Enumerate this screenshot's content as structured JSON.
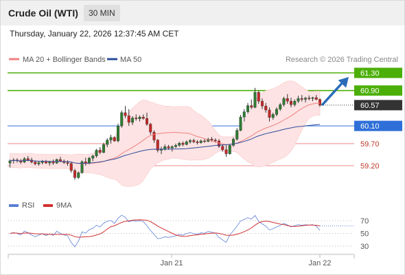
{
  "header": {
    "title": "Crude Oil (WTI)",
    "timeframe": "30 MIN"
  },
  "datetime": "Thursday, January 22, 2026 12:37:45 AM CET",
  "legend": {
    "ma20_label": "MA 20 + Bollinger Bands",
    "ma50_label": "MA 50",
    "ma20_color": "#f08080",
    "ma50_color": "#2c4c9c"
  },
  "credit": "Research © 2026 Trading Central",
  "colors": {
    "resistance": "#4caf08",
    "support_main": "#2f6fd8",
    "support_minor": "#c0392b",
    "last_price": "#333333",
    "bull": "#2e7d32",
    "bear": "#c62828",
    "arrow": "#2a6cb8"
  },
  "chart_data": {
    "type": "candlestick",
    "x_ticks": [
      "Jan 21",
      "Jan 22"
    ],
    "ylim": [
      59.05,
      61.38
    ],
    "levels": [
      {
        "value": 61.3,
        "label": "61.30",
        "type": "resistance"
      },
      {
        "value": 60.9,
        "label": "60.90",
        "type": "resistance"
      },
      {
        "value": 60.57,
        "label": "60.57",
        "type": "last"
      },
      {
        "value": 60.1,
        "label": "60.10",
        "type": "support_main"
      },
      {
        "value": 59.7,
        "label": "59.70",
        "type": "support_minor"
      },
      {
        "value": 59.2,
        "label": "59.20",
        "type": "support_minor"
      }
    ],
    "candles": [
      [
        59.26,
        59.34,
        59.16,
        59.31
      ],
      [
        59.31,
        59.37,
        59.25,
        59.33
      ],
      [
        59.33,
        59.37,
        59.27,
        59.31
      ],
      [
        59.31,
        59.35,
        59.24,
        59.28
      ],
      [
        59.28,
        59.39,
        59.26,
        59.36
      ],
      [
        59.36,
        59.42,
        59.3,
        59.33
      ],
      [
        59.33,
        59.38,
        59.25,
        59.28
      ],
      [
        59.28,
        59.32,
        59.21,
        59.24
      ],
      [
        59.24,
        59.3,
        59.2,
        59.27
      ],
      [
        59.27,
        59.33,
        59.23,
        59.3
      ],
      [
        59.3,
        59.33,
        59.24,
        59.26
      ],
      [
        59.26,
        59.31,
        59.2,
        59.29
      ],
      [
        59.29,
        59.34,
        59.22,
        59.26
      ],
      [
        59.26,
        59.36,
        59.24,
        59.34
      ],
      [
        59.34,
        59.4,
        59.28,
        59.3
      ],
      [
        59.3,
        59.34,
        59.24,
        59.27
      ],
      [
        59.27,
        59.32,
        59.2,
        59.25
      ],
      [
        59.25,
        59.29,
        59.04,
        59.09
      ],
      [
        59.09,
        59.13,
        58.88,
        58.93
      ],
      [
        58.93,
        59.07,
        58.9,
        59.04
      ],
      [
        59.04,
        59.32,
        59.02,
        59.29
      ],
      [
        59.29,
        59.38,
        59.2,
        59.25
      ],
      [
        59.25,
        59.4,
        59.23,
        59.37
      ],
      [
        59.37,
        59.45,
        59.3,
        59.42
      ],
      [
        59.42,
        59.58,
        59.38,
        59.55
      ],
      [
        59.55,
        59.62,
        59.46,
        59.5
      ],
      [
        59.5,
        59.72,
        59.48,
        59.68
      ],
      [
        59.68,
        59.82,
        59.62,
        59.78
      ],
      [
        59.78,
        59.9,
        59.7,
        59.84
      ],
      [
        59.84,
        59.86,
        59.74,
        59.76
      ],
      [
        59.76,
        60.15,
        59.73,
        60.1
      ],
      [
        60.1,
        60.45,
        60.06,
        60.4
      ],
      [
        60.4,
        60.55,
        60.28,
        60.33
      ],
      [
        60.33,
        60.48,
        60.1,
        60.18
      ],
      [
        60.18,
        60.32,
        60.12,
        60.28
      ],
      [
        60.28,
        60.36,
        60.22,
        60.26
      ],
      [
        60.26,
        60.34,
        60.2,
        60.3
      ],
      [
        60.3,
        60.36,
        60.24,
        60.27
      ],
      [
        60.27,
        60.4,
        60.1,
        60.14
      ],
      [
        60.14,
        60.17,
        59.9,
        59.96
      ],
      [
        59.96,
        60.0,
        59.72,
        59.78
      ],
      [
        59.78,
        59.8,
        59.5,
        59.55
      ],
      [
        59.55,
        59.63,
        59.46,
        59.58
      ],
      [
        59.58,
        59.68,
        59.54,
        59.63
      ],
      [
        59.63,
        59.67,
        59.56,
        59.6
      ],
      [
        59.6,
        59.66,
        59.52,
        59.63
      ],
      [
        59.63,
        59.7,
        59.6,
        59.66
      ],
      [
        59.66,
        59.74,
        59.63,
        59.71
      ],
      [
        59.71,
        59.75,
        59.64,
        59.68
      ],
      [
        59.68,
        59.77,
        59.66,
        59.74
      ],
      [
        59.74,
        59.8,
        59.7,
        59.77
      ],
      [
        59.77,
        59.81,
        59.71,
        59.74
      ],
      [
        59.74,
        59.78,
        59.68,
        59.72
      ],
      [
        59.72,
        59.79,
        59.7,
        59.76
      ],
      [
        59.76,
        59.8,
        59.72,
        59.75
      ],
      [
        59.75,
        59.83,
        59.73,
        59.8
      ],
      [
        59.8,
        59.85,
        59.74,
        59.78
      ],
      [
        59.78,
        59.82,
        59.72,
        59.76
      ],
      [
        59.76,
        59.8,
        59.6,
        59.64
      ],
      [
        59.64,
        59.69,
        59.52,
        59.56
      ],
      [
        59.56,
        59.66,
        59.4,
        59.47
      ],
      [
        59.47,
        59.68,
        59.45,
        59.66
      ],
      [
        59.66,
        59.84,
        59.63,
        59.8
      ],
      [
        59.8,
        60.05,
        59.77,
        60.0
      ],
      [
        60.0,
        60.35,
        59.98,
        60.3
      ],
      [
        60.3,
        60.48,
        60.2,
        60.42
      ],
      [
        60.42,
        60.62,
        60.38,
        60.56
      ],
      [
        60.56,
        60.7,
        60.48,
        60.52
      ],
      [
        60.52,
        60.96,
        60.5,
        60.86
      ],
      [
        60.86,
        60.9,
        60.6,
        60.66
      ],
      [
        60.66,
        60.72,
        60.48,
        60.55
      ],
      [
        60.55,
        60.62,
        60.4,
        60.46
      ],
      [
        60.46,
        60.52,
        60.2,
        60.29
      ],
      [
        60.29,
        60.4,
        60.24,
        60.36
      ],
      [
        60.36,
        60.52,
        60.32,
        60.48
      ],
      [
        60.48,
        60.62,
        60.44,
        60.58
      ],
      [
        60.58,
        60.76,
        60.54,
        60.72
      ],
      [
        60.72,
        60.82,
        60.6,
        60.66
      ],
      [
        60.66,
        60.74,
        60.52,
        60.58
      ],
      [
        60.58,
        60.7,
        60.54,
        60.66
      ],
      [
        60.66,
        60.78,
        60.62,
        60.72
      ],
      [
        60.72,
        60.8,
        60.65,
        60.7
      ],
      [
        60.7,
        60.76,
        60.63,
        60.73
      ],
      [
        60.73,
        60.79,
        60.68,
        60.72
      ],
      [
        60.72,
        60.76,
        60.66,
        60.74
      ],
      [
        60.74,
        60.8,
        60.68,
        60.7
      ],
      [
        60.7,
        60.72,
        60.53,
        60.57
      ]
    ],
    "indicators": [
      {
        "name": "MA 20 + Bollinger Bands",
        "type": "ma20_bollinger"
      },
      {
        "name": "MA 50",
        "type": "ma50"
      }
    ],
    "rsi": {
      "levels": [
        70,
        50,
        30
      ],
      "ylim": [
        20,
        80
      ],
      "legend": [
        {
          "name": "RSI",
          "color": "#5b7fd6"
        },
        {
          "name": "9MA",
          "color": "#d32f2f"
        }
      ]
    }
  }
}
